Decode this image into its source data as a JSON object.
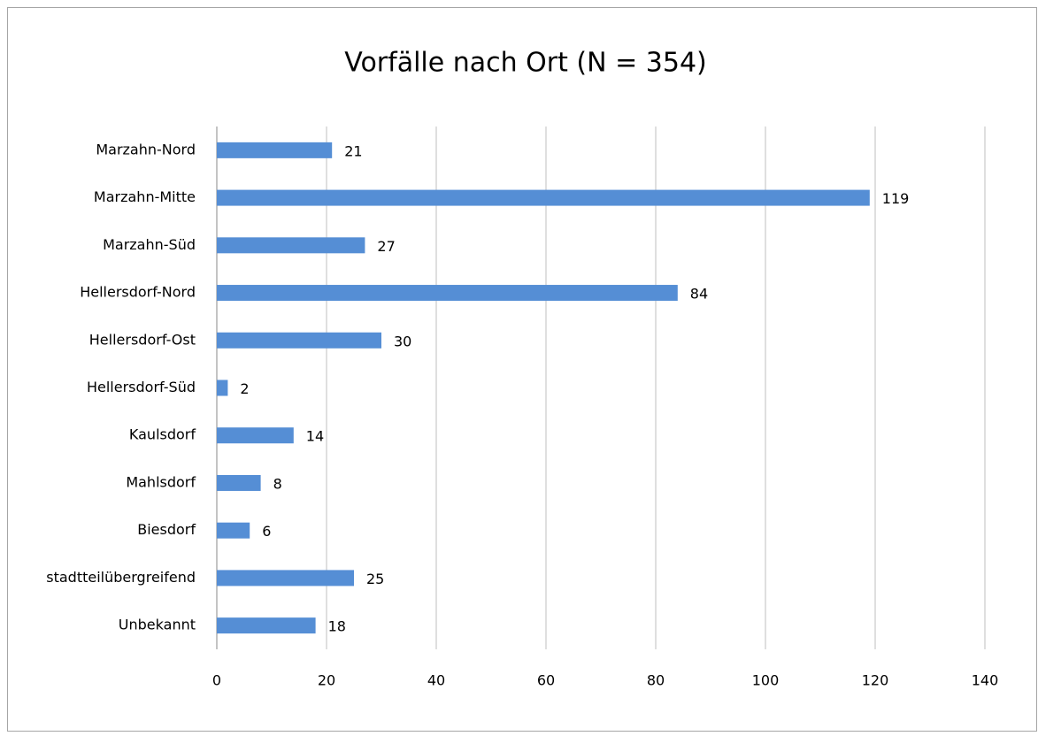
{
  "chart_data": {
    "type": "hbar",
    "title": "Vorfälle nach Ort (N = 354)",
    "categories": [
      "Marzahn-Nord",
      "Marzahn-Mitte",
      "Marzahn-Süd",
      "Hellersdorf-Nord",
      "Hellersdorf-Ost",
      "Hellersdorf-Süd",
      "Kaulsdorf",
      "Mahlsdorf",
      "Biesdorf",
      "stadtteilübergreifend",
      "Unbekannt"
    ],
    "values": [
      21,
      119,
      27,
      84,
      30,
      2,
      14,
      8,
      6,
      25,
      18
    ],
    "color": "#558ed5",
    "xlim": [
      0,
      140
    ],
    "xticks": [
      0,
      20,
      40,
      60,
      80,
      100,
      120,
      140
    ],
    "grid": true
  }
}
